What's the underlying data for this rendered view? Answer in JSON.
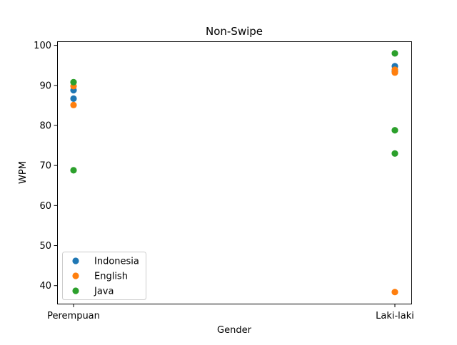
{
  "chart_data": {
    "type": "scatter",
    "title": "Non-Swipe",
    "xlabel": "Gender",
    "ylabel": "WPM",
    "categories": [
      "Perempuan",
      "Laki-laki"
    ],
    "ylim": [
      35.5,
      101
    ],
    "yticks": [
      40,
      50,
      60,
      70,
      80,
      90,
      100
    ],
    "grid": false,
    "legend_position": "lower-left",
    "series": [
      {
        "name": "Indonesia",
        "color": "#1f77b4",
        "points": [
          {
            "x": "Perempuan",
            "y": 88.8
          },
          {
            "x": "Perempuan",
            "y": 86.7
          },
          {
            "x": "Laki-laki",
            "y": 94.8
          },
          {
            "x": "Laki-laki",
            "y": 93.5
          }
        ]
      },
      {
        "name": "English",
        "color": "#ff7f0e",
        "points": [
          {
            "x": "Perempuan",
            "y": 89.8
          },
          {
            "x": "Perempuan",
            "y": 85.1
          },
          {
            "x": "Laki-laki",
            "y": 93.9
          },
          {
            "x": "Laki-laki",
            "y": 93.2
          },
          {
            "x": "Laki-laki",
            "y": 38.4
          }
        ]
      },
      {
        "name": "Java",
        "color": "#2ca02c",
        "points": [
          {
            "x": "Perempuan",
            "y": 90.8
          },
          {
            "x": "Perempuan",
            "y": 68.8
          },
          {
            "x": "Laki-laki",
            "y": 98.0
          },
          {
            "x": "Laki-laki",
            "y": 78.8
          },
          {
            "x": "Laki-laki",
            "y": 73.0
          }
        ]
      }
    ]
  }
}
